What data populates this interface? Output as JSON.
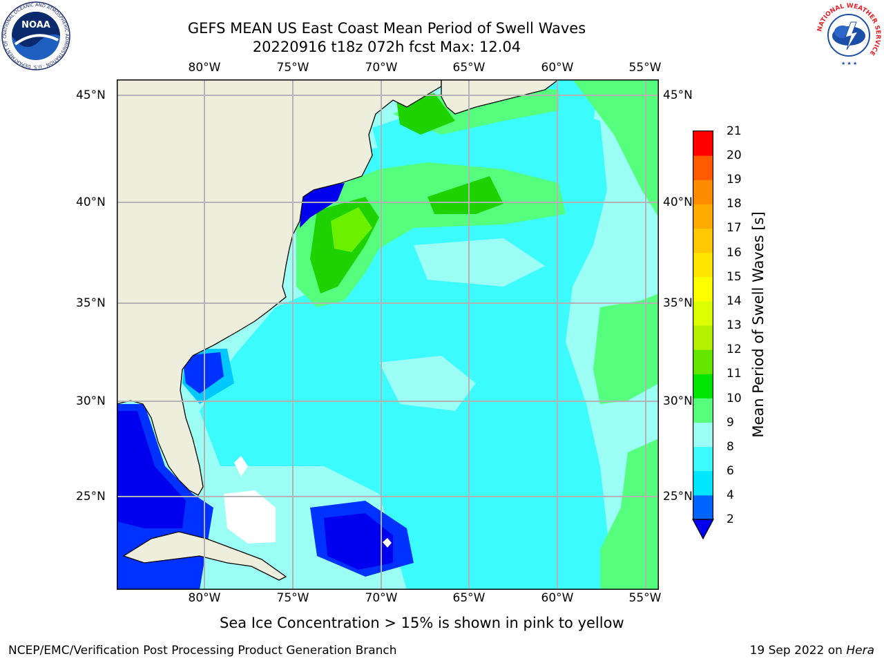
{
  "header": {
    "title_line1": "GEFS MEAN US East Coast Mean Period of Swell Waves",
    "title_line2": "20220916 t18z 072h fcst   Max: 12.04"
  },
  "map": {
    "lon_ticks": [
      "80°W",
      "75°W",
      "70°W",
      "65°W",
      "60°W",
      "55°W"
    ],
    "lat_ticks": [
      "45°N",
      "40°N",
      "35°N",
      "30°N",
      "25°N"
    ],
    "colors": {
      "land": "#eeeedc",
      "c2_4": "#0032ff",
      "c4_6": "#00c8ff",
      "c6_8": "#3cfbff",
      "c8_9": "#9bfff5",
      "c9_10": "#55ff7d",
      "c10_11": "#1ed200",
      "c11_12": "#6bf000",
      "deep": "#0000ee",
      "white": "#ffffff"
    }
  },
  "colorbar": {
    "label": "Mean Period of Swell Waves [s]",
    "ticks": [
      "21",
      "20",
      "19",
      "18",
      "17",
      "16",
      "15",
      "14",
      "13",
      "12",
      "11",
      "10",
      "9",
      "8",
      "6",
      "4",
      "2"
    ],
    "levels": [
      2,
      4,
      6,
      8,
      9,
      10,
      11,
      12,
      13,
      14,
      15,
      16,
      17,
      18,
      19,
      20,
      21
    ],
    "bins": [
      "#0064ff",
      "#00e6ff",
      "#3cfbff",
      "#9bfff5",
      "#55ff7d",
      "#00e600",
      "#64e600",
      "#b4f000",
      "#dcff00",
      "#ffff00",
      "#ffe600",
      "#ffc800",
      "#ffaa00",
      "#ff8c00",
      "#ff5a00",
      "#ff0000"
    ],
    "under_color": "#0000ee"
  },
  "notes": {
    "sea_ice": "Sea Ice Concentration > 15% is shown in pink to yellow"
  },
  "footer": {
    "left": "NCEP/EMC/Verification Post Processing Product Generation Branch",
    "right_date": "19 Sep 2022 on ",
    "right_host": "Hera"
  },
  "logos": {
    "noaa_text": "NOAA",
    "noaa_ring": "NATIONAL OCEANIC AND ATMOSPHERIC ADMINISTRATION · U.S. DEPARTMENT OF COMMERCE",
    "nws_ring": "NATIONAL WEATHER SERVICE"
  }
}
